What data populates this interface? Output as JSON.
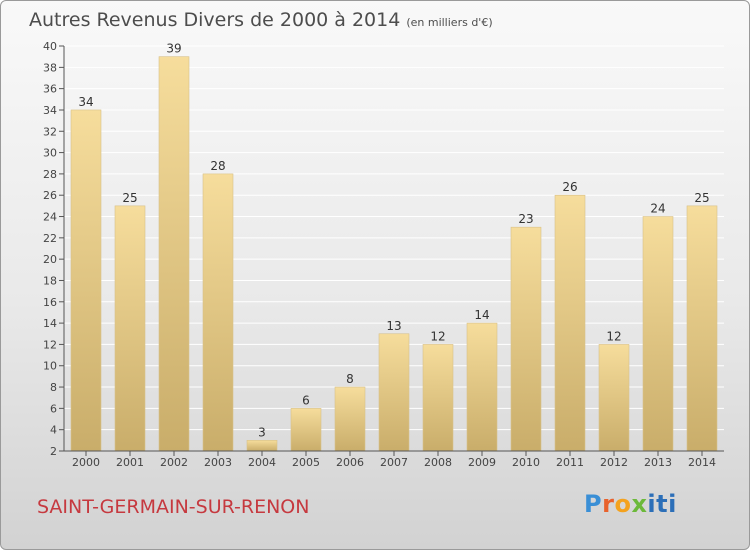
{
  "header": {
    "title": "Autres Revenus Divers de 2000 à 2014",
    "unit": "(en milliers d'€)"
  },
  "footer": {
    "commune": "SAINT-GERMAIN-SUR-RENON",
    "logo": "Proxiti"
  },
  "colors": {
    "bar_light": "#f6dd9c",
    "bar_dark": "#c9ad6a",
    "commune_text": "#c6393f",
    "grid": "#ffffff"
  },
  "chart_data": {
    "type": "bar",
    "title": "Autres Revenus Divers de 2000 à 2014",
    "subtitle": "(en milliers d'€)",
    "xlabel": "",
    "ylabel": "",
    "categories": [
      "2000",
      "2001",
      "2002",
      "2003",
      "2004",
      "2005",
      "2006",
      "2007",
      "2008",
      "2009",
      "2010",
      "2011",
      "2012",
      "2013",
      "2014"
    ],
    "values": [
      34,
      25,
      39,
      28,
      3,
      6,
      8,
      13,
      12,
      14,
      23,
      26,
      12,
      24,
      25
    ],
    "value_labels": [
      "34",
      "25",
      "39",
      "28",
      "3",
      "6",
      "8",
      "13",
      "12",
      "14",
      "23",
      "26",
      "12",
      "24",
      "25"
    ],
    "ylim": [
      2,
      40
    ],
    "yticks": [
      2,
      4,
      6,
      8,
      10,
      12,
      14,
      16,
      18,
      20,
      22,
      24,
      26,
      28,
      30,
      32,
      34,
      36,
      38,
      40
    ],
    "grid": true,
    "legend": "none"
  }
}
